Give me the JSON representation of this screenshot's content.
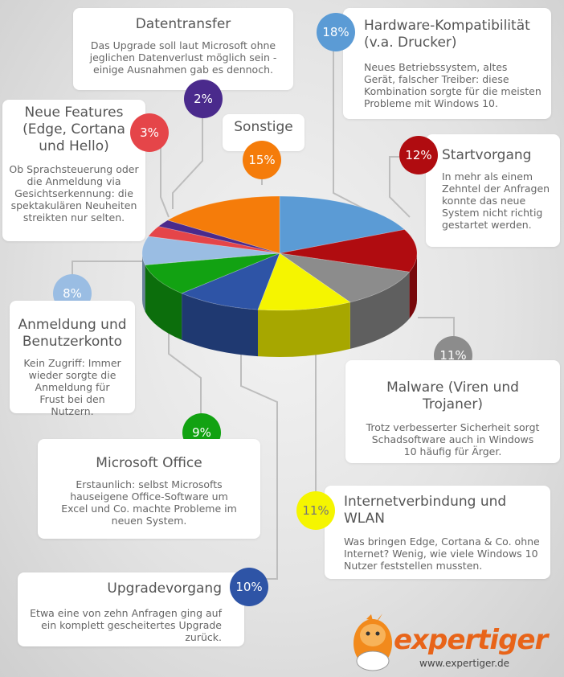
{
  "chart_data": {
    "type": "pie",
    "slices": [
      {
        "label": "Hardware-Kompatibilität (v.a. Drucker)",
        "value": 18,
        "pct": "18%",
        "color": "#5b9bd5",
        "desc": "Neues Betriebssystem, altes Gerät, falscher Treiber: diese Kombination sorgte für die meisten Probleme mit Windows 10."
      },
      {
        "label": "Startvorgang",
        "value": 12,
        "pct": "12%",
        "color": "#b00c10",
        "desc": "In mehr als einem Zehntel der Anfragen konnte das neue System nicht richtig gestartet werden."
      },
      {
        "label": "Malware (Viren und Trojaner)",
        "value": 11,
        "pct": "11%",
        "color": "#8c8c8c",
        "desc": "Trotz verbesserter Sicherheit sorgt Schadsoftware auch in Windows 10 häufig für Ärger."
      },
      {
        "label": "Internetverbindung und WLAN",
        "value": 11,
        "pct": "11%",
        "color": "#f5f500",
        "desc": "Was bringen Edge, Cortana & Co. ohne Internet? Wenig, wie viele Windows 10 Nutzer feststellen mussten."
      },
      {
        "label": "Upgradevorgang",
        "value": 10,
        "pct": "10%",
        "color": "#2e54a6",
        "desc": "Etwa eine von zehn Anfragen ging auf ein komplett gescheitertes Upgrade zurück."
      },
      {
        "label": "Microsoft Office",
        "value": 9,
        "pct": "9%",
        "color": "#12a212",
        "desc": "Erstaunlich: selbst Microsofts hauseigene Office-Software um Excel und Co. machte Probleme im neuen System."
      },
      {
        "label": "Anmeldung und Benutzerkonto",
        "value": 8,
        "pct": "8%",
        "color": "#9abde3",
        "desc": "Kein Zugriff: Immer wieder sorgte die Anmeldung für Frust bei den Nutzern."
      },
      {
        "label": "Neue Features (Edge, Cortana und Hello)",
        "value": 3,
        "pct": "3%",
        "color": "#e54549",
        "desc": "Ob Sprachsteuerung oder die Anmeldung via Gesichtserkennung: die spektakulären Neuheiten streikten nur selten."
      },
      {
        "label": "Datentransfer",
        "value": 2,
        "pct": "2%",
        "color": "#4a2a8c",
        "desc": "Das Upgrade soll laut Microsoft ohne jeglichen Datenverlust möglich sein - einige Ausnahmen gab es dennoch."
      },
      {
        "label": "Sonstige",
        "value": 15,
        "pct": "15%",
        "color": "#f57c0a",
        "desc": ""
      }
    ]
  },
  "footer": {
    "brand": "expertiger",
    "url": "www.expertiger.de"
  }
}
